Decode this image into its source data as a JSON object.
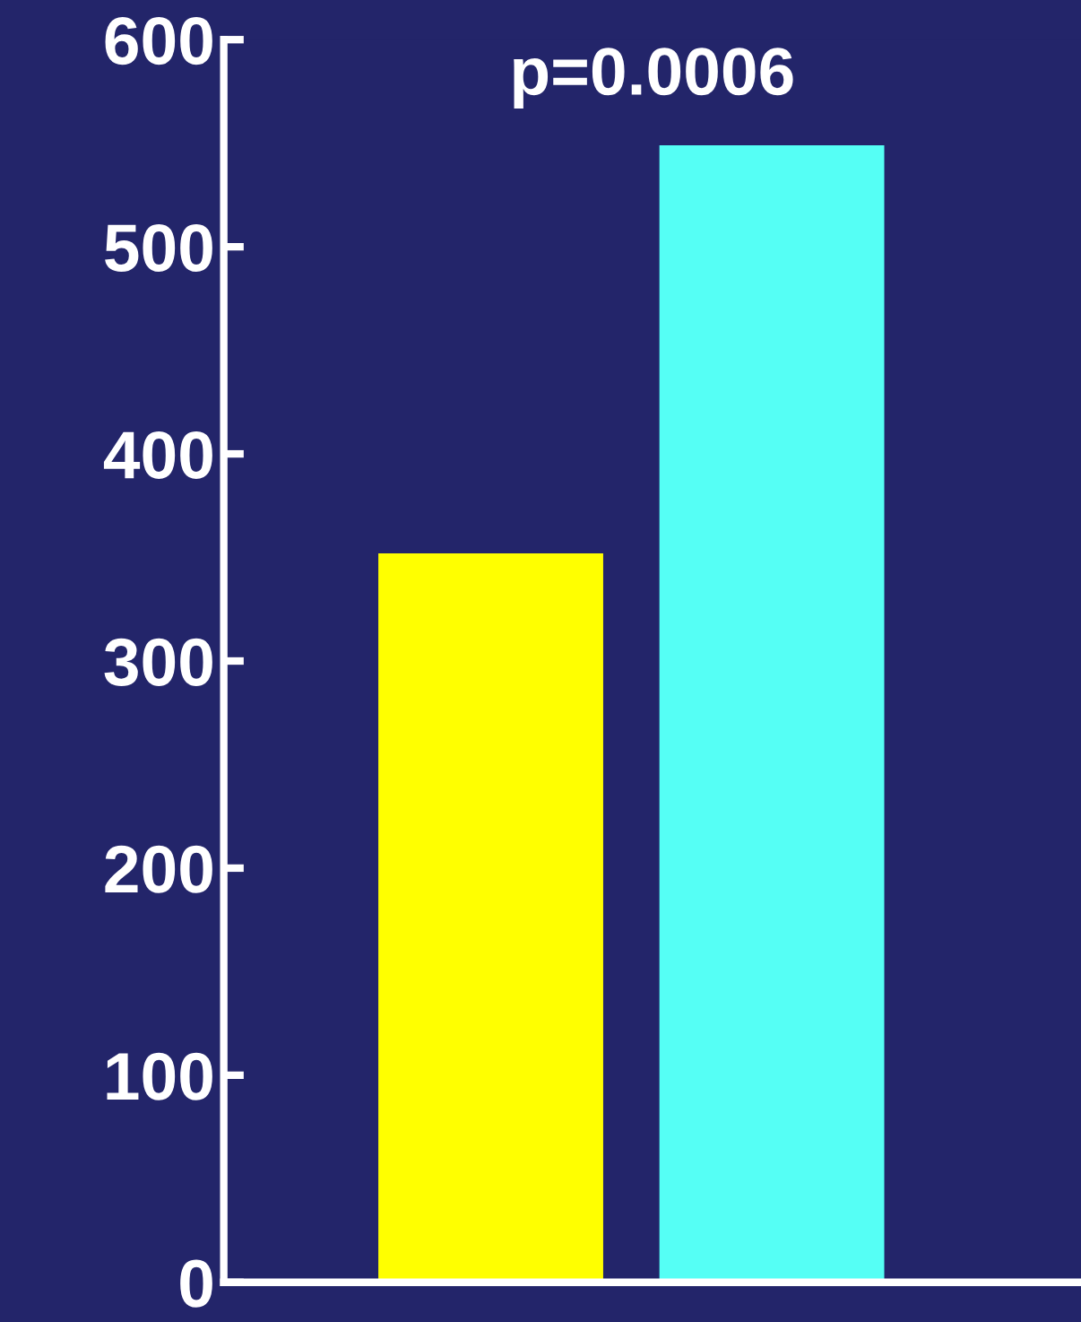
{
  "chart_data": {
    "type": "bar",
    "categories": [
      null,
      null
    ],
    "values": [
      352,
      549
    ],
    "colors": [
      "#ffff00",
      "#55fff5"
    ],
    "ylim": [
      0,
      600
    ],
    "yticks": [
      0,
      100,
      200,
      300,
      400,
      500,
      600
    ],
    "annotations": [
      "p=0.0006"
    ],
    "grid": false,
    "legend": false
  }
}
